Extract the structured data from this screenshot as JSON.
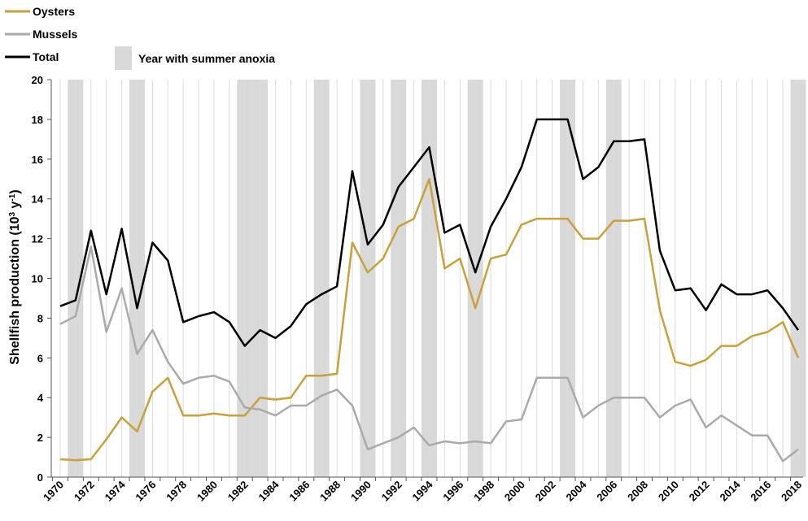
{
  "chart_data": {
    "type": "line",
    "title": "",
    "xlabel": "",
    "ylabel": "Shellfish production (10³ y⁻¹)",
    "ylabel_main": "Shellfish production (10",
    "ylabel_sup": "3",
    "ylabel_mid": " y",
    "ylabel_sup2": "-1",
    "ylabel_end": ")",
    "ylim": [
      0,
      20
    ],
    "yticks": [
      0,
      2,
      4,
      6,
      8,
      10,
      12,
      14,
      16,
      18,
      20
    ],
    "xlim": [
      1970,
      2018
    ],
    "xticks": [
      1970,
      1972,
      1974,
      1976,
      1978,
      1980,
      1982,
      1984,
      1986,
      1988,
      1990,
      1992,
      1994,
      1996,
      1998,
      2000,
      2002,
      2004,
      2006,
      2008,
      2010,
      2012,
      2014,
      2016,
      2018
    ],
    "grid": "vertical",
    "legend_position": "top-left",
    "anoxia_label": "Year with summer anoxia",
    "anoxia_years": [
      1971,
      1975,
      1982,
      1983,
      1987,
      1990,
      1992,
      1994,
      1997,
      2003,
      2006,
      2018
    ],
    "years": [
      1970,
      1971,
      1972,
      1973,
      1974,
      1975,
      1976,
      1977,
      1978,
      1979,
      1980,
      1981,
      1982,
      1983,
      1984,
      1985,
      1986,
      1987,
      1988,
      1989,
      1990,
      1991,
      1992,
      1993,
      1994,
      1995,
      1996,
      1997,
      1998,
      1999,
      2000,
      2001,
      2002,
      2003,
      2004,
      2005,
      2006,
      2007,
      2008,
      2009,
      2010,
      2011,
      2012,
      2013,
      2014,
      2015,
      2016,
      2017,
      2018
    ],
    "series": [
      {
        "name": "Oysters",
        "color": "#c9a03a",
        "values": [
          0.9,
          0.85,
          0.9,
          1.9,
          3.0,
          2.3,
          4.3,
          5.0,
          3.1,
          3.1,
          3.2,
          3.1,
          3.1,
          4.0,
          3.9,
          4.0,
          5.1,
          5.1,
          5.2,
          11.8,
          10.3,
          11.0,
          12.6,
          13.0,
          15.0,
          10.5,
          11.0,
          8.5,
          11.0,
          11.2,
          12.7,
          13.0,
          13.0,
          13.0,
          12.0,
          12.0,
          12.9,
          12.9,
          13.0,
          8.4,
          5.8,
          5.6,
          5.9,
          6.6,
          6.6,
          7.1,
          7.3,
          7.8,
          6.0
        ]
      },
      {
        "name": "Mussels",
        "color": "#aaaaaa",
        "values": [
          7.7,
          8.1,
          11.6,
          7.3,
          9.5,
          6.2,
          7.4,
          5.8,
          4.7,
          5.0,
          5.1,
          4.8,
          3.5,
          3.4,
          3.1,
          3.6,
          3.6,
          4.1,
          4.4,
          3.6,
          1.4,
          1.7,
          2.0,
          2.5,
          1.6,
          1.8,
          1.7,
          1.8,
          1.7,
          2.8,
          2.9,
          5.0,
          5.0,
          5.0,
          3.0,
          3.6,
          4.0,
          4.0,
          4.0,
          3.0,
          3.6,
          3.9,
          2.5,
          3.1,
          2.6,
          2.1,
          2.1,
          0.8,
          1.4
        ]
      },
      {
        "name": "Total",
        "color": "#000000",
        "values": [
          8.6,
          8.9,
          12.4,
          9.2,
          12.5,
          8.5,
          11.8,
          10.9,
          7.8,
          8.1,
          8.3,
          7.8,
          6.6,
          7.4,
          7.0,
          7.6,
          8.7,
          9.2,
          9.6,
          15.4,
          11.7,
          12.7,
          14.6,
          15.6,
          16.6,
          12.3,
          12.7,
          10.3,
          12.6,
          14.0,
          15.6,
          18.0,
          18.0,
          18.0,
          15.0,
          15.6,
          16.9,
          16.9,
          17.0,
          11.4,
          9.4,
          9.5,
          8.4,
          9.7,
          9.2,
          9.2,
          9.4,
          8.5,
          7.4
        ]
      }
    ]
  }
}
